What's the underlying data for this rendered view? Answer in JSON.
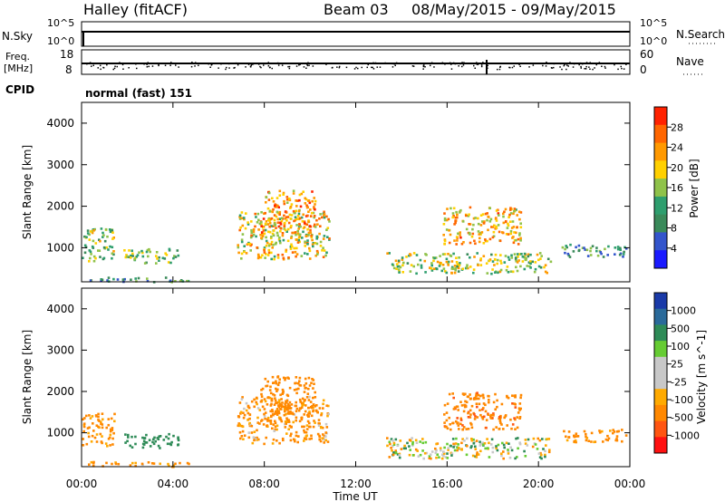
{
  "header": {
    "title": "Halley (fitACF)",
    "beam": "Beam 03",
    "date_range": "08/May/2015 - 09/May/2015"
  },
  "sky_panel": {
    "left_label": "N.Sky",
    "right_label": "N.Search",
    "left_ticks": [
      "10^5",
      "10^0"
    ],
    "right_ticks": [
      "10^5",
      "10^0"
    ]
  },
  "freq_panel": {
    "left_label_line1": "Freq.",
    "left_label_line2": "[MHz]",
    "right_label": "Nave",
    "left_ticks": [
      "18",
      "8"
    ],
    "right_ticks": [
      "60",
      "0"
    ]
  },
  "cpid": {
    "label": "CPID",
    "value": "normal (fast) 151"
  },
  "colors": {
    "power_scale": [
      "#1a1aff",
      "#3355cc",
      "#3a8a5a",
      "#2e9e6e",
      "#8fc24a",
      "#ffd000",
      "#ff9900",
      "#ff6600",
      "#ff2200"
    ],
    "velocity_scale": [
      "#ff1111",
      "#ff5511",
      "#ff8800",
      "#ffaa00",
      "#c8c8c8",
      "#c8c8c8",
      "#66cc33",
      "#2e8b57",
      "#2a6a9a",
      "#1a3aa8"
    ]
  },
  "chart_data": [
    {
      "type": "heatmap",
      "name": "power",
      "ylabel": "Slant Range [km]",
      "ylim": [
        180,
        4500
      ],
      "yticks": [
        "1000",
        "2000",
        "3000",
        "4000"
      ],
      "xlim_hours": [
        0,
        24
      ],
      "colorbar_label": "Power [dB]",
      "colorbar_ticks": [
        "28",
        "24",
        "20",
        "16",
        "12",
        "8",
        "4"
      ],
      "colorbar_range": [
        0,
        30
      ],
      "echo_regions": [
        {
          "t0": 0.0,
          "t1": 1.4,
          "r0": 700,
          "r1": 1500,
          "value": 14
        },
        {
          "t0": 0.2,
          "t1": 4.7,
          "r0": 200,
          "r1": 320,
          "value": 10
        },
        {
          "t0": 1.8,
          "t1": 4.2,
          "r0": 650,
          "r1": 1000,
          "value": 14
        },
        {
          "t0": 6.8,
          "t1": 10.8,
          "r0": 750,
          "r1": 1900,
          "value": 18
        },
        {
          "t0": 7.8,
          "t1": 10.2,
          "r0": 1300,
          "r1": 2400,
          "value": 22
        },
        {
          "t0": 13.3,
          "t1": 20.5,
          "r0": 400,
          "r1": 900,
          "value": 16
        },
        {
          "t0": 15.8,
          "t1": 19.2,
          "r0": 1100,
          "r1": 2000,
          "value": 20
        },
        {
          "t0": 21.0,
          "t1": 23.8,
          "r0": 800,
          "r1": 1100,
          "value": 10
        }
      ]
    },
    {
      "type": "heatmap",
      "name": "velocity",
      "ylabel": "Slant Range [km]",
      "ylim": [
        180,
        4500
      ],
      "yticks": [
        "1000",
        "2000",
        "3000",
        "4000"
      ],
      "xlabel": "Time UT",
      "xticks": [
        "00:00",
        "04:00",
        "08:00",
        "12:00",
        "16:00",
        "20:00",
        "00:00"
      ],
      "xlim_hours": [
        0,
        24
      ],
      "colorbar_label": "Velocity [m s^-1]",
      "colorbar_ticks": [
        "1000",
        "500",
        "100",
        "25",
        "-25",
        "-100",
        "-500",
        "-1000"
      ],
      "echo_regions": [
        {
          "t0": 0.0,
          "t1": 1.4,
          "r0": 700,
          "r1": 1500,
          "value": -200
        },
        {
          "t0": 0.2,
          "t1": 4.7,
          "r0": 200,
          "r1": 320,
          "value": -150
        },
        {
          "t0": 1.8,
          "t1": 4.2,
          "r0": 650,
          "r1": 1000,
          "value": 300
        },
        {
          "t0": 6.8,
          "t1": 10.8,
          "r0": 750,
          "r1": 1900,
          "value": -150
        },
        {
          "t0": 7.8,
          "t1": 10.2,
          "r0": 1300,
          "r1": 2400,
          "value": -250
        },
        {
          "t0": 13.3,
          "t1": 20.5,
          "r0": 400,
          "r1": 900,
          "value": 0
        },
        {
          "t0": 15.8,
          "t1": 19.2,
          "r0": 1100,
          "r1": 2000,
          "value": -400
        },
        {
          "t0": 21.0,
          "t1": 23.8,
          "r0": 800,
          "r1": 1100,
          "value": -200
        }
      ]
    }
  ]
}
